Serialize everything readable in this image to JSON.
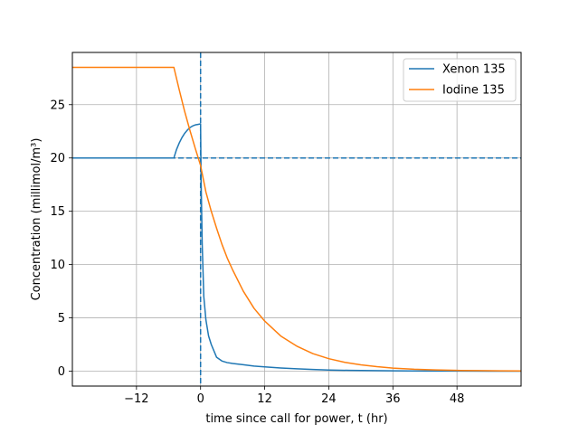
{
  "chart_data": {
    "type": "line",
    "title": "",
    "xlabel": "time since call for power, t (hr)",
    "ylabel": "Concentration (millimol/m³)",
    "xlim": [
      -24,
      60
    ],
    "ylim": [
      -1.4,
      29.9
    ],
    "xticks": [
      -12,
      0,
      12,
      24,
      36,
      48
    ],
    "xtick_labels": [
      "−12",
      "0",
      "12",
      "24",
      "36",
      "48"
    ],
    "yticks": [
      0,
      5,
      10,
      15,
      20,
      25
    ],
    "ytick_labels": [
      "0",
      "5",
      "10",
      "15",
      "20",
      "25"
    ],
    "grid": true,
    "legend_position": "top-right",
    "reference_lines": [
      {
        "orientation": "vertical",
        "value": 0,
        "style": "dashed",
        "color": "#1f77b4"
      },
      {
        "orientation": "horizontal",
        "value": 20,
        "style": "dashed",
        "color": "#1f77b4"
      }
    ],
    "series": [
      {
        "name": "Xenon 135",
        "color": "#1f77b4",
        "x": [
          -24,
          -5,
          -4.5,
          -4,
          -3.5,
          -3,
          -2.5,
          -2,
          -1.5,
          -1,
          -0.5,
          0,
          0.1,
          0.3,
          0.6,
          1,
          1.5,
          2,
          3,
          4,
          5,
          6,
          8,
          10,
          12,
          15,
          18,
          21,
          24,
          28,
          32,
          36,
          42,
          48,
          54,
          60
        ],
        "y": [
          20,
          20,
          20.8,
          21.4,
          21.9,
          22.3,
          22.6,
          22.85,
          23.0,
          23.1,
          23.15,
          23.2,
          18,
          12,
          7.0,
          4.8,
          3.3,
          2.5,
          1.3,
          0.95,
          0.8,
          0.72,
          0.6,
          0.48,
          0.4,
          0.3,
          0.22,
          0.16,
          0.11,
          0.07,
          0.05,
          0.03,
          0.015,
          0.008,
          0.004,
          0.002
        ]
      },
      {
        "name": "Iodine 135",
        "color": "#ff7f0e",
        "x": [
          -24,
          -5,
          -4,
          -3,
          -2,
          -1,
          0,
          1,
          2,
          3,
          4,
          5,
          6,
          8,
          10,
          12,
          15,
          18,
          21,
          24,
          27,
          30,
          33,
          36,
          40,
          44,
          48,
          52,
          56,
          60
        ],
        "y": [
          28.5,
          28.5,
          26.4,
          24.4,
          22.6,
          20.9,
          19.3,
          16.8,
          15.0,
          13.4,
          11.9,
          10.6,
          9.5,
          7.5,
          5.9,
          4.7,
          3.3,
          2.35,
          1.65,
          1.17,
          0.83,
          0.59,
          0.42,
          0.29,
          0.18,
          0.12,
          0.07,
          0.05,
          0.03,
          0.02
        ]
      }
    ]
  }
}
